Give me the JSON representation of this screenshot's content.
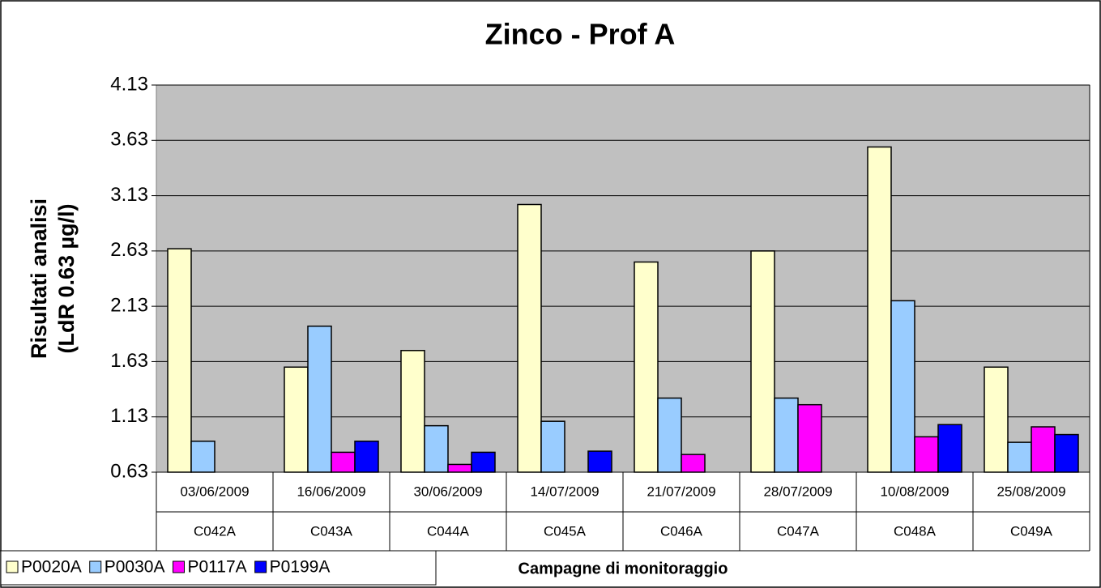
{
  "chart_data": {
    "type": "bar",
    "title": "Zinco - Prof A",
    "y_label": [
      "Risultati analisi",
      "(LdR 0.63 µg/l)"
    ],
    "x_label": "Campagne di monitoraggio",
    "categories": [
      "03/06/2009",
      "16/06/2009",
      "30/06/2009",
      "14/07/2009",
      "21/07/2009",
      "28/07/2009",
      "10/08/2009",
      "25/08/2009"
    ],
    "campaigns": [
      "C042A",
      "C043A",
      "C044A",
      "C045A",
      "C046A",
      "C047A",
      "C048A",
      "C049A"
    ],
    "series": [
      {
        "name": "P0020A",
        "color": "#ffffcc",
        "values": [
          2.65,
          1.58,
          1.73,
          3.05,
          2.53,
          2.63,
          3.57,
          1.58
        ]
      },
      {
        "name": "P0030A",
        "color": "#99ccff",
        "values": [
          0.91,
          1.95,
          1.05,
          1.09,
          1.3,
          1.3,
          2.18,
          0.9
        ]
      },
      {
        "name": "P0117A",
        "color": "#ff00ff",
        "values": [
          null,
          0.81,
          0.7,
          null,
          0.79,
          1.24,
          0.95,
          1.04
        ]
      },
      {
        "name": "P0199A",
        "color": "#0000ff",
        "values": [
          null,
          0.91,
          0.81,
          0.82,
          null,
          null,
          1.06,
          0.97
        ]
      }
    ],
    "ylim": [
      0.63,
      4.13
    ],
    "yticks": [
      0.63,
      1.13,
      1.63,
      2.13,
      2.63,
      3.13,
      3.63,
      4.13
    ],
    "grid": true,
    "plot_background": "#c0c0c0",
    "legend": "bottom-left"
  }
}
